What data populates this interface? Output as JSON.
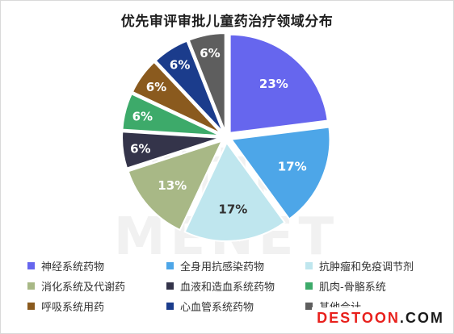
{
  "chart_data": {
    "type": "pie",
    "title": "优先审评审批儿童药治疗领域分布",
    "categories": [
      "神经系统药物",
      "全身用抗感染药物",
      "抗肿瘤和免疫调节剂",
      "消化系统及代谢药",
      "血液和造血系统药物",
      "肌肉-骨骼系统",
      "呼吸系统用药",
      "心血管系统药物",
      "其他合计"
    ],
    "values": [
      23,
      17,
      17,
      13,
      6,
      6,
      6,
      6,
      6
    ],
    "labels": [
      "23%",
      "17%",
      "17%",
      "13%",
      "6%",
      "6%",
      "6%",
      "6%",
      "6%"
    ],
    "colors": [
      "#6666ee",
      "#4da6e8",
      "#bfe6ee",
      "#a8b886",
      "#34344a",
      "#3daa6a",
      "#8a5a1e",
      "#1b3c8c",
      "#5e5e5e"
    ],
    "legend_placement": "bottom",
    "start_angle_deg": 0,
    "direction": "clockwise",
    "exploded": true
  },
  "watermark": "米内网 MENET",
  "source_badge": {
    "part1": "DESTOON",
    "part2": ".COM"
  }
}
